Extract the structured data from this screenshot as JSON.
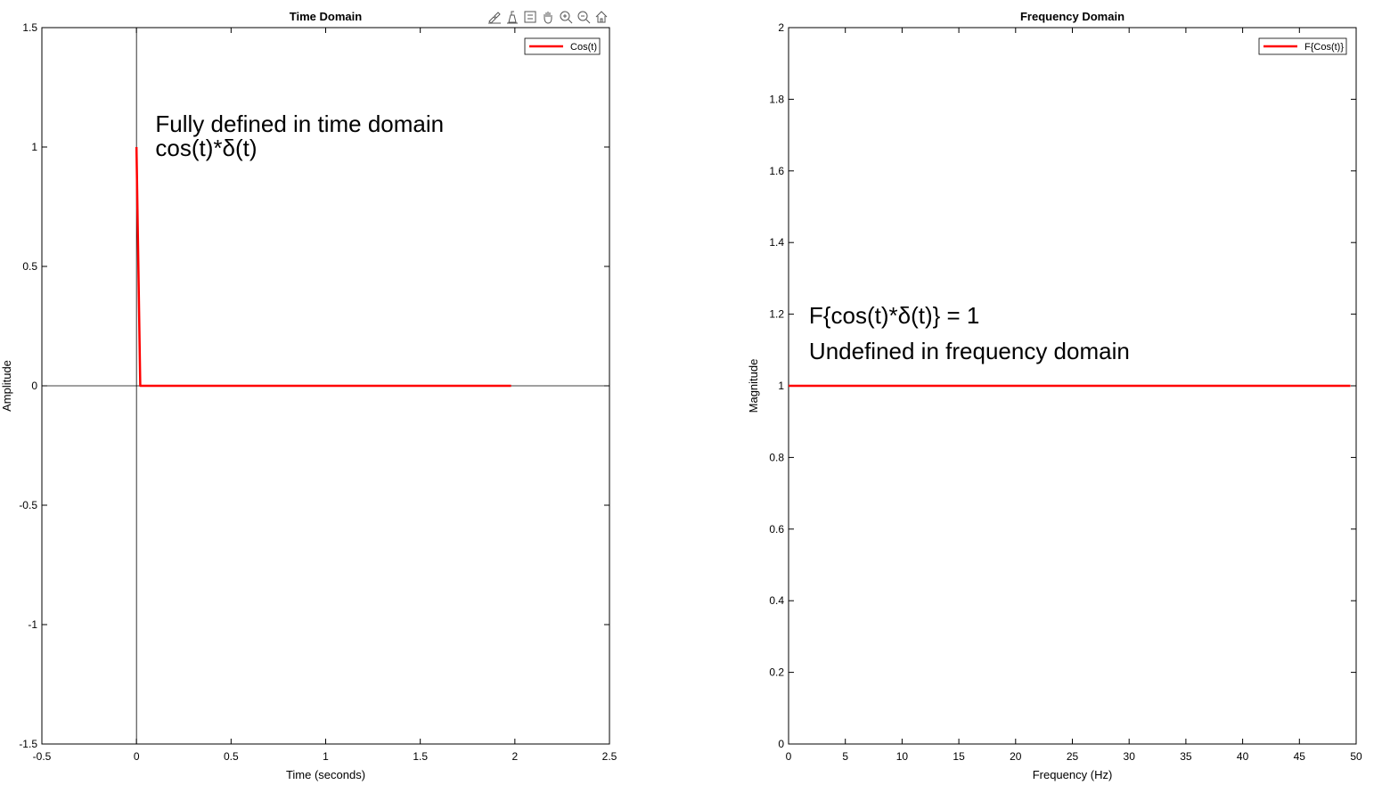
{
  "toolbar": {
    "icons": [
      "brush-icon",
      "data-tips-icon",
      "insert-legend-icon",
      "pan-icon",
      "zoom-in-icon",
      "zoom-out-icon",
      "home-icon"
    ]
  },
  "colors": {
    "series": "#ff0000",
    "axis": "#000000",
    "background": "#ffffff"
  },
  "chart_data": [
    {
      "type": "line",
      "title": "Time Domain",
      "xlabel": "Time (seconds)",
      "ylabel": "Amplitude",
      "xlim": [
        -0.5,
        2.5
      ],
      "ylim": [
        -1.5,
        1.5
      ],
      "xticks": [
        -0.5,
        0,
        0.5,
        1,
        1.5,
        2,
        2.5
      ],
      "yticks": [
        -1.5,
        -1,
        -0.5,
        0,
        0.5,
        1,
        1.5
      ],
      "xtick_labels": [
        "-0.5",
        "0",
        "0.5",
        "1",
        "1.5",
        "2",
        "2.5"
      ],
      "ytick_labels": [
        "-1.5",
        "-1",
        "-0.5",
        "0",
        "0.5",
        "1",
        "1.5"
      ],
      "grid": false,
      "reference_lines": {
        "x0": true,
        "y0": true
      },
      "legend": {
        "position": "top-right",
        "entries": [
          "Cos(t)"
        ]
      },
      "series": [
        {
          "name": "Cos(t)",
          "x": [
            0,
            0.02,
            1.98
          ],
          "y": [
            1,
            0,
            0
          ]
        }
      ],
      "annotations": [
        {
          "text": "Fully defined in time domain",
          "x": 0.1,
          "y": 1.1
        },
        {
          "text": "cos(t)*δ(t)",
          "x": 0.1,
          "y": 1.0
        }
      ]
    },
    {
      "type": "line",
      "title": "Frequency Domain",
      "xlabel": "Frequency (Hz)",
      "ylabel": "Magnitude",
      "xlim": [
        0,
        50
      ],
      "ylim": [
        0,
        2
      ],
      "xticks": [
        0,
        5,
        10,
        15,
        20,
        25,
        30,
        35,
        40,
        45,
        50
      ],
      "yticks": [
        0,
        0.2,
        0.4,
        0.6,
        0.8,
        1,
        1.2,
        1.4,
        1.6,
        1.8,
        2
      ],
      "xtick_labels": [
        "0",
        "5",
        "10",
        "15",
        "20",
        "25",
        "30",
        "35",
        "40",
        "45",
        "50"
      ],
      "ytick_labels": [
        "0",
        "0.2",
        "0.4",
        "0.6",
        "0.8",
        "1",
        "1.2",
        "1.4",
        "1.6",
        "1.8",
        "2"
      ],
      "grid": false,
      "legend": {
        "position": "top-right",
        "entries": [
          "F{Cos(t)}"
        ]
      },
      "series": [
        {
          "name": "F{Cos(t)}",
          "x": [
            0,
            49.5
          ],
          "y": [
            1,
            1
          ]
        }
      ],
      "annotations": [
        {
          "text": "F{cos(t)*δ(t)} = 1",
          "x": 1.8,
          "y": 1.2
        },
        {
          "text": "Undefined in frequency domain",
          "x": 1.8,
          "y": 1.1
        }
      ]
    }
  ]
}
